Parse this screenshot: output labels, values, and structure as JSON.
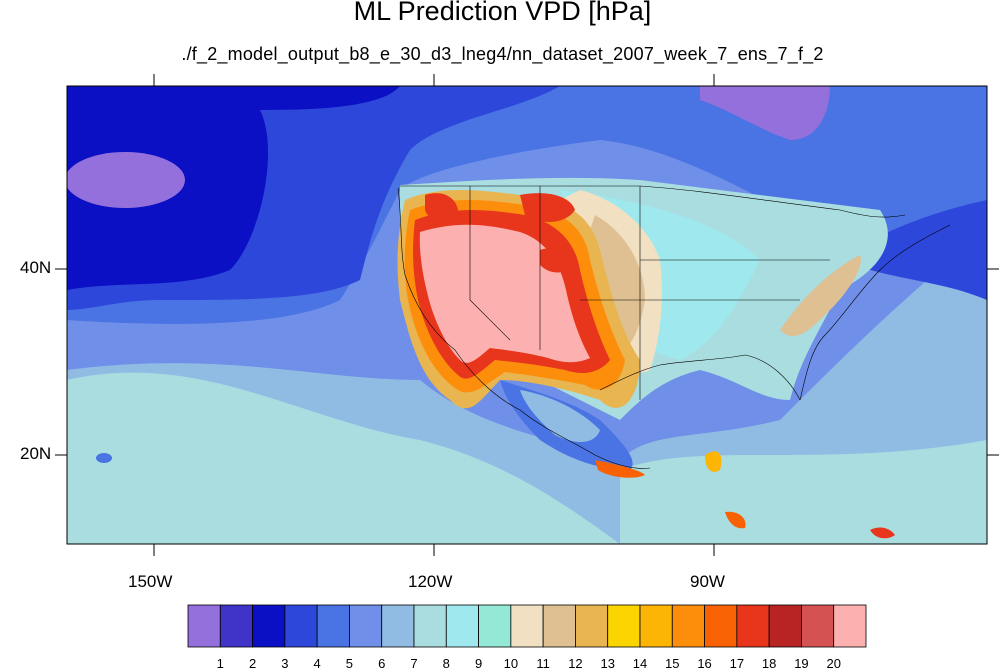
{
  "title": "ML Prediction VPD [hPa]",
  "subtitle": "./f_2_model_output_b8_e_30_d3_lneg4/nn_dataset_2007_week_7_ens_7_f_2",
  "map": {
    "lat_labels": [
      "40N",
      "20N"
    ],
    "lon_labels": [
      "150W",
      "120W",
      "90W"
    ]
  },
  "colorbar": {
    "labels": [
      "1",
      "2",
      "3",
      "4",
      "5",
      "6",
      "7",
      "8",
      "9",
      "10",
      "11",
      "12",
      "13",
      "14",
      "15",
      "16",
      "17",
      "18",
      "19",
      "20"
    ],
    "colors": [
      "#9370db",
      "#3f33c8",
      "#0b10c4",
      "#2e47db",
      "#4a73e4",
      "#6f8fe8",
      "#90bce4",
      "#a9dde0",
      "#9ee8ee",
      "#94e8d6",
      "#f1e1c2",
      "#dfc093",
      "#e8b550",
      "#fcd400",
      "#fcb405",
      "#fc8e0c",
      "#f86204",
      "#e8361c",
      "#b82323",
      "#d45252",
      "#fcb0b0"
    ]
  }
}
